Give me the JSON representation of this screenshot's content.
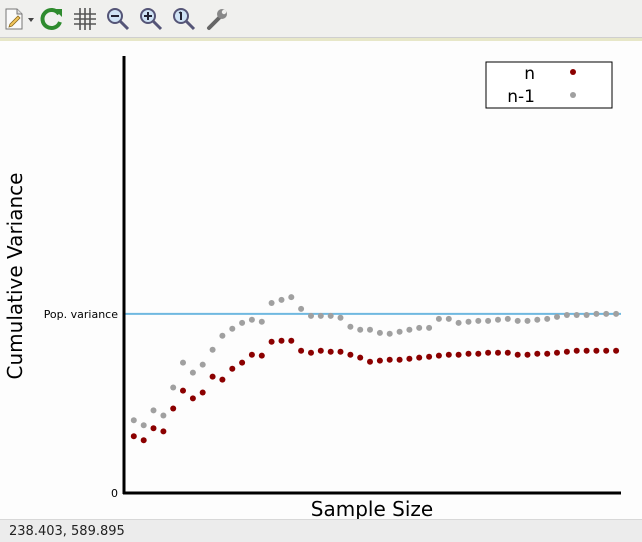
{
  "toolbar": {
    "buttons": [
      {
        "icon": "save-document-icon"
      },
      {
        "icon": "refresh-icon"
      },
      {
        "icon": "grid-icon"
      },
      {
        "icon": "zoom-out-icon"
      },
      {
        "icon": "zoom-in-icon"
      },
      {
        "icon": "zoom-reset-icon"
      },
      {
        "icon": "settings-wrench-icon"
      }
    ]
  },
  "status": {
    "coords": "238.403,  589.895"
  },
  "colors": {
    "series_n": "#8b0000",
    "series_n1": "#a0a0a0",
    "reference_line": "#6fb8e0",
    "axis": "#000000"
  },
  "chart_data": {
    "type": "scatter",
    "title": "",
    "xlabel": "Sample Size",
    "ylabel": "Cumulative Variance",
    "y_tick_labels": [
      {
        "value": 0,
        "label": "0"
      },
      {
        "value": 100,
        "label": "Pop. variance"
      }
    ],
    "ylim": [
      0,
      244
    ],
    "xlim": [
      0,
      50.5
    ],
    "reference_line": {
      "value": 100,
      "label": "Pop. variance"
    },
    "legend": {
      "placement": "top-right",
      "entries": [
        "n",
        "n-1"
      ]
    },
    "x": [
      1,
      2,
      3,
      4,
      5,
      6,
      7,
      8,
      9,
      10,
      11,
      12,
      13,
      14,
      15,
      16,
      17,
      18,
      19,
      20,
      21,
      22,
      23,
      24,
      25,
      26,
      27,
      28,
      29,
      30,
      31,
      32,
      33,
      34,
      35,
      36,
      37,
      38,
      39,
      40,
      41,
      42,
      43,
      44,
      45,
      46,
      47,
      48,
      49,
      50
    ],
    "series": [
      {
        "name": "n",
        "values": [
          31.7,
          29.4,
          36.1,
          34.4,
          47.2,
          57.2,
          52.8,
          56.1,
          65.0,
          63.3,
          69.4,
          72.8,
          77.2,
          76.7,
          84.4,
          85.0,
          85.0,
          79.4,
          78.3,
          79.4,
          78.9,
          78.9,
          77.2,
          75.6,
          73.3,
          73.9,
          74.4,
          74.4,
          75.0,
          75.6,
          76.1,
          76.7,
          77.2,
          77.2,
          77.8,
          77.8,
          78.3,
          78.3,
          78.3,
          77.2,
          77.2,
          77.8,
          77.8,
          78.3,
          78.9,
          79.4,
          79.4,
          79.4,
          79.4,
          79.4
        ]
      },
      {
        "name": "n-1",
        "values": [
          40.6,
          37.8,
          46.1,
          43.3,
          58.9,
          72.8,
          67.2,
          71.7,
          80.0,
          87.8,
          91.7,
          95.0,
          96.7,
          95.6,
          106.1,
          107.8,
          109.4,
          102.8,
          98.9,
          98.9,
          98.9,
          97.8,
          92.8,
          91.1,
          91.1,
          89.4,
          88.9,
          90.0,
          91.1,
          92.2,
          92.2,
          97.2,
          97.2,
          95.0,
          95.6,
          96.1,
          96.1,
          96.7,
          97.2,
          96.1,
          96.1,
          96.7,
          97.2,
          98.3,
          99.4,
          99.4,
          99.4,
          100.0,
          100.0,
          100.0
        ]
      }
    ]
  }
}
